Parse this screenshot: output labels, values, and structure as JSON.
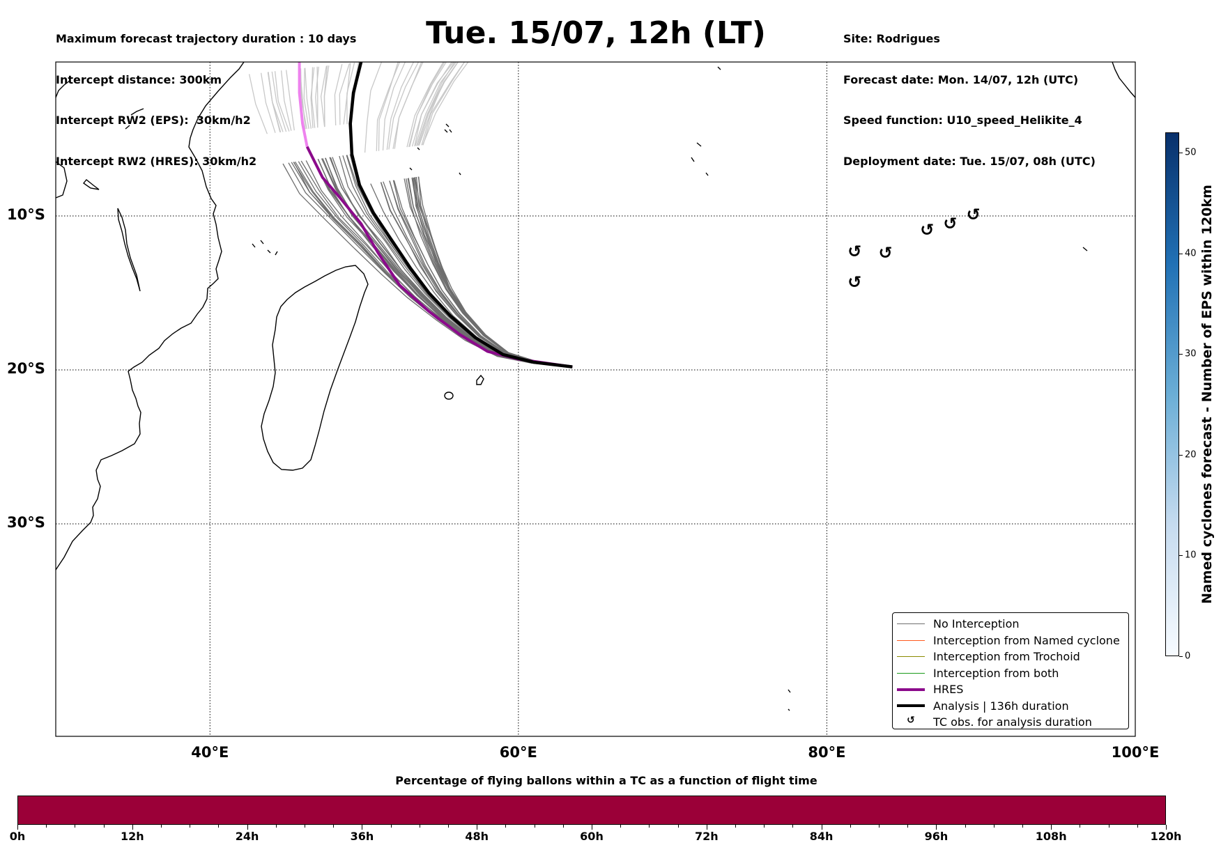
{
  "header_left": [
    "Maximum forecast trajectory duration : 10 days",
    "Intercept distance: 300km",
    "Intercept RW2 (EPS):  30km/h2",
    "Intercept RW2 (HRES): 30km/h2"
  ],
  "header_right": [
    "Site: Rodrigues",
    "Forecast date: Mon. 14/07, 12h (UTC)",
    "Speed function: U10_speed_Helikite_4",
    "Deployment date: Tue. 15/07, 08h (UTC)"
  ],
  "title": "Tue. 15/07, 12h (LT)",
  "map": {
    "lon_range": [
      30,
      100
    ],
    "lat_range": [
      -43.8,
      0
    ],
    "lat_ticks": [
      {
        "value": -10,
        "label": "10°S"
      },
      {
        "value": -20,
        "label": "20°S"
      },
      {
        "value": -30,
        "label": "30°S"
      }
    ],
    "lon_ticks": [
      {
        "value": 40,
        "label": "40°E"
      },
      {
        "value": 60,
        "label": "60°E"
      },
      {
        "value": 80,
        "label": "80°E"
      },
      {
        "value": 100,
        "label": "100°E"
      }
    ],
    "grid": "dotted",
    "colors": {
      "eps_tracks": "#6e6e6e",
      "eps_tracks_faded": "#c8c8c8",
      "hres": "#8b0a8b",
      "hres_faded": "#ee82ee",
      "analysis": "#000000",
      "coast": "#000000"
    },
    "analysis_track": [
      [
        49.8,
        0
      ],
      [
        49.3,
        -2
      ],
      [
        49.1,
        -4
      ],
      [
        49.2,
        -6
      ],
      [
        49.7,
        -8
      ],
      [
        50.6,
        -9.8
      ],
      [
        51.8,
        -11.6
      ],
      [
        53,
        -13.4
      ],
      [
        54.2,
        -15
      ],
      [
        55.6,
        -16.5
      ],
      [
        57.2,
        -17.9
      ],
      [
        59,
        -19
      ],
      [
        61,
        -19.5
      ],
      [
        63.5,
        -19.8
      ]
    ],
    "hres_track": [
      [
        45.8,
        0
      ],
      [
        45.8,
        -2
      ],
      [
        46,
        -4
      ],
      [
        46.3,
        -5.5
      ],
      [
        47.3,
        -7.5
      ],
      [
        48.5,
        -8.9
      ],
      [
        49.8,
        -10.5
      ],
      [
        50.9,
        -12.4
      ],
      [
        52.3,
        -14.5
      ],
      [
        54.2,
        -16.2
      ],
      [
        56.2,
        -17.7
      ],
      [
        58,
        -18.8
      ],
      [
        60,
        -19.3
      ],
      [
        63.5,
        -19.8
      ]
    ],
    "hres_faded_until_lat": -5.5,
    "tc_observations": [
      [
        81.8,
        -12.3
      ],
      [
        81.8,
        -14.3
      ],
      [
        83.8,
        -12.4
      ],
      [
        86.5,
        -10.9
      ],
      [
        88,
        -10.5
      ],
      [
        89.5,
        -9.9
      ]
    ]
  },
  "legend": [
    {
      "label": "No Interception",
      "color": "#6e6e6e",
      "kind": "line",
      "width": 1
    },
    {
      "label": "Interception from Named cyclone",
      "color": "#ff5a1f",
      "kind": "line",
      "width": 1
    },
    {
      "label": "Interception from Trochoid",
      "color": "#8b8b00",
      "kind": "line",
      "width": 1
    },
    {
      "label": "Interception from both",
      "color": "#1a9a1a",
      "kind": "line",
      "width": 1
    },
    {
      "label": "HRES",
      "color": "#8b0a8b",
      "kind": "line",
      "width": 4
    },
    {
      "label": "Analysis | 136h duration",
      "color": "#000000",
      "kind": "line",
      "width": 4
    },
    {
      "label": "TC obs. for analysis duration",
      "color": "#000000",
      "kind": "glyph",
      "glyph": "↺"
    }
  ],
  "colorbar_right": {
    "label": "Named cyclones forecast - Number of EPS within 120km",
    "min": 0,
    "max": 52,
    "ticks": [
      "0",
      "10",
      "20",
      "30",
      "40",
      "50"
    ],
    "color_low": "#f7fbff",
    "color_high": "#08306b"
  },
  "colorbar_bottom": {
    "title": "Percentage of flying ballons within a TC as a function of flight time",
    "ticks": [
      "0h",
      "12h",
      "24h",
      "36h",
      "48h",
      "60h",
      "72h",
      "84h",
      "96h",
      "108h",
      "120h"
    ],
    "color": "#9b0038"
  }
}
